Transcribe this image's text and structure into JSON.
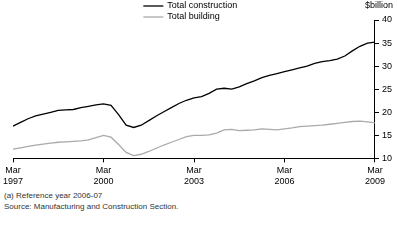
{
  "chart_data": {
    "type": "line",
    "y_label": "$billion",
    "footnote": "(a) Reference year 2006-07",
    "source": "Source: Manufacturing and Construction Section.",
    "categories": [
      "Mar 1997",
      null,
      null,
      null,
      null,
      null,
      null,
      null,
      null,
      null,
      null,
      null,
      "Mar 2000",
      null,
      null,
      null,
      null,
      null,
      null,
      null,
      null,
      null,
      null,
      null,
      "Mar 2003",
      null,
      null,
      null,
      null,
      null,
      null,
      null,
      null,
      null,
      null,
      null,
      "Mar 2006",
      null,
      null,
      null,
      null,
      null,
      null,
      null,
      null,
      null,
      null,
      null,
      "Mar 2009"
    ],
    "series": [
      {
        "name": "Total construction",
        "color": "#000000",
        "values": [
          17.0,
          17.8,
          18.6,
          19.2,
          19.6,
          20.0,
          20.4,
          20.5,
          20.6,
          21.0,
          21.3,
          21.6,
          21.8,
          21.5,
          19.5,
          17.2,
          16.7,
          17.2,
          18.2,
          19.2,
          20.1,
          21.0,
          21.9,
          22.6,
          23.1,
          23.4,
          24.1,
          25.0,
          25.2,
          25.0,
          25.5,
          26.2,
          26.8,
          27.5,
          28.0,
          28.4,
          28.8,
          29.2,
          29.6,
          30.0,
          30.6,
          31.0,
          31.2,
          31.5,
          32.2,
          33.3,
          34.3,
          35.0,
          35.2
        ]
      },
      {
        "name": "Total building",
        "color": "#aaaaaa",
        "values": [
          12.0,
          12.3,
          12.6,
          12.9,
          13.1,
          13.3,
          13.5,
          13.6,
          13.7,
          13.8,
          14.0,
          14.5,
          15.0,
          14.6,
          13.0,
          11.3,
          10.6,
          10.9,
          11.5,
          12.2,
          12.9,
          13.5,
          14.1,
          14.7,
          15.0,
          15.0,
          15.1,
          15.5,
          16.2,
          16.3,
          16.0,
          16.1,
          16.2,
          16.4,
          16.3,
          16.2,
          16.4,
          16.6,
          16.9,
          17.0,
          17.1,
          17.2,
          17.4,
          17.6,
          17.8,
          18.0,
          18.1,
          17.9,
          17.7
        ]
      }
    ],
    "ylim": [
      10,
      40
    ],
    "yticks": [
      10,
      15,
      20,
      25,
      30,
      35,
      40
    ],
    "grid": false
  }
}
